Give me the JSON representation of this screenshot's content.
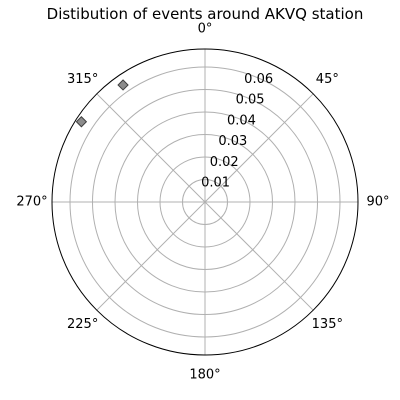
{
  "chart_data": {
    "type": "scatter",
    "projection": "polar",
    "title": "Distibution of events around AKVQ station",
    "theta_zero_location": "top",
    "theta_direction": "clockwise",
    "angle_ticks": [
      {
        "value": 0,
        "label": "0°"
      },
      {
        "value": 45,
        "label": "45°"
      },
      {
        "value": 90,
        "label": "90°"
      },
      {
        "value": 135,
        "label": "135°"
      },
      {
        "value": 180,
        "label": "180°"
      },
      {
        "value": 225,
        "label": "225°"
      },
      {
        "value": 270,
        "label": "270°"
      },
      {
        "value": 315,
        "label": "315°"
      }
    ],
    "radial_ticks": [
      {
        "value": 0.01,
        "label": "0.01"
      },
      {
        "value": 0.02,
        "label": "0.02"
      },
      {
        "value": 0.03,
        "label": "0.03"
      },
      {
        "value": 0.04,
        "label": "0.04"
      },
      {
        "value": 0.05,
        "label": "0.05"
      },
      {
        "value": 0.06,
        "label": "0.06"
      }
    ],
    "rlim": [
      0,
      0.068
    ],
    "grid": true,
    "points": [
      {
        "theta": 325,
        "r": 0.0635
      },
      {
        "theta": 303,
        "r": 0.0655
      }
    ],
    "marker": "diamond",
    "marker_color": "#808080",
    "marker_edge_color": "#404040",
    "grid_color": "#b0b0b0"
  }
}
